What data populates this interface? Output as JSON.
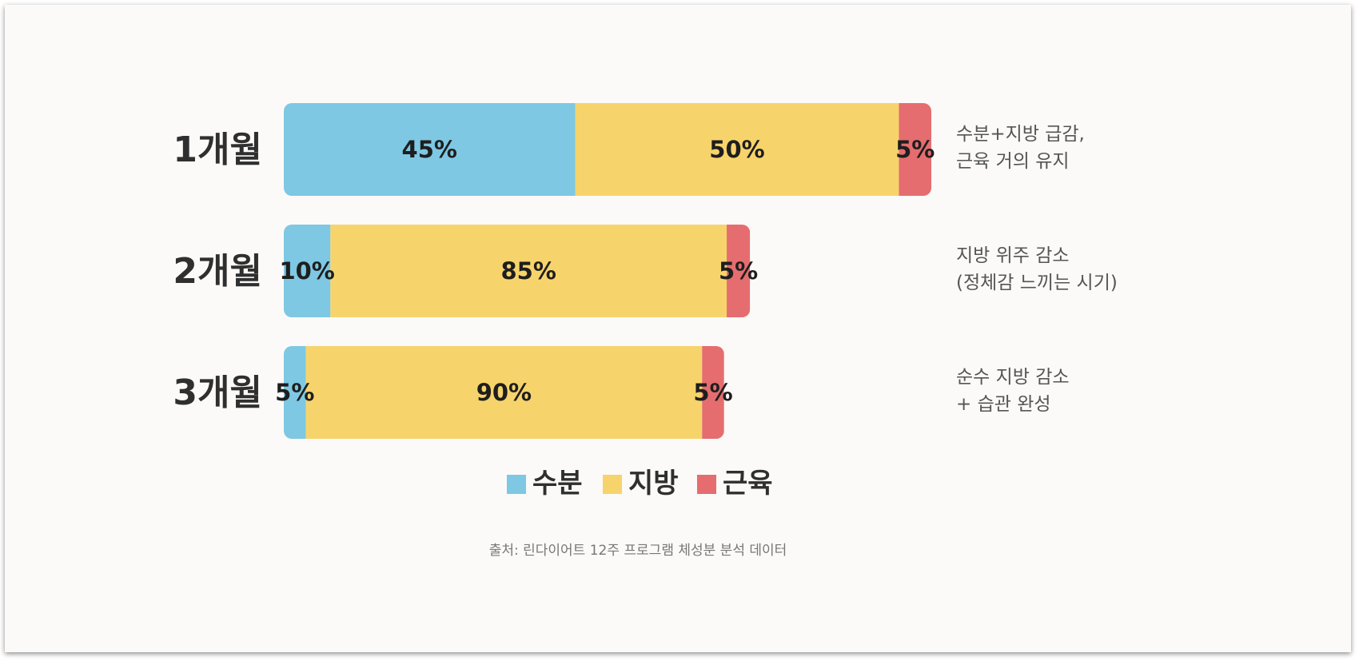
{
  "chart_data": {
    "type": "bar",
    "orientation": "horizontal",
    "stacked": true,
    "categories": [
      "1개월",
      "2개월",
      "3개월"
    ],
    "series": [
      {
        "name": "수분",
        "values": [
          45,
          10,
          5
        ],
        "color": "#7ec8e3"
      },
      {
        "name": "지방",
        "values": [
          50,
          85,
          90
        ],
        "color": "#f7d46b"
      },
      {
        "name": "근육",
        "values": [
          5,
          5,
          5
        ],
        "color": "#e56d6f"
      }
    ],
    "bar_totals_relative": [
      1.0,
      0.72,
      0.68
    ],
    "annotations": [
      [
        "수분+지방 급감,",
        "근육 거의 유지"
      ],
      [
        "지방 위주 감소",
        "(정체감 느끼는 시기)"
      ],
      [
        "순수 지방 감소",
        "+ 습관 완성"
      ]
    ],
    "legend_position": "bottom",
    "source": "출처: 린다이어트 12주 프로그램 체성분 분석 데이터",
    "unit": "%"
  }
}
